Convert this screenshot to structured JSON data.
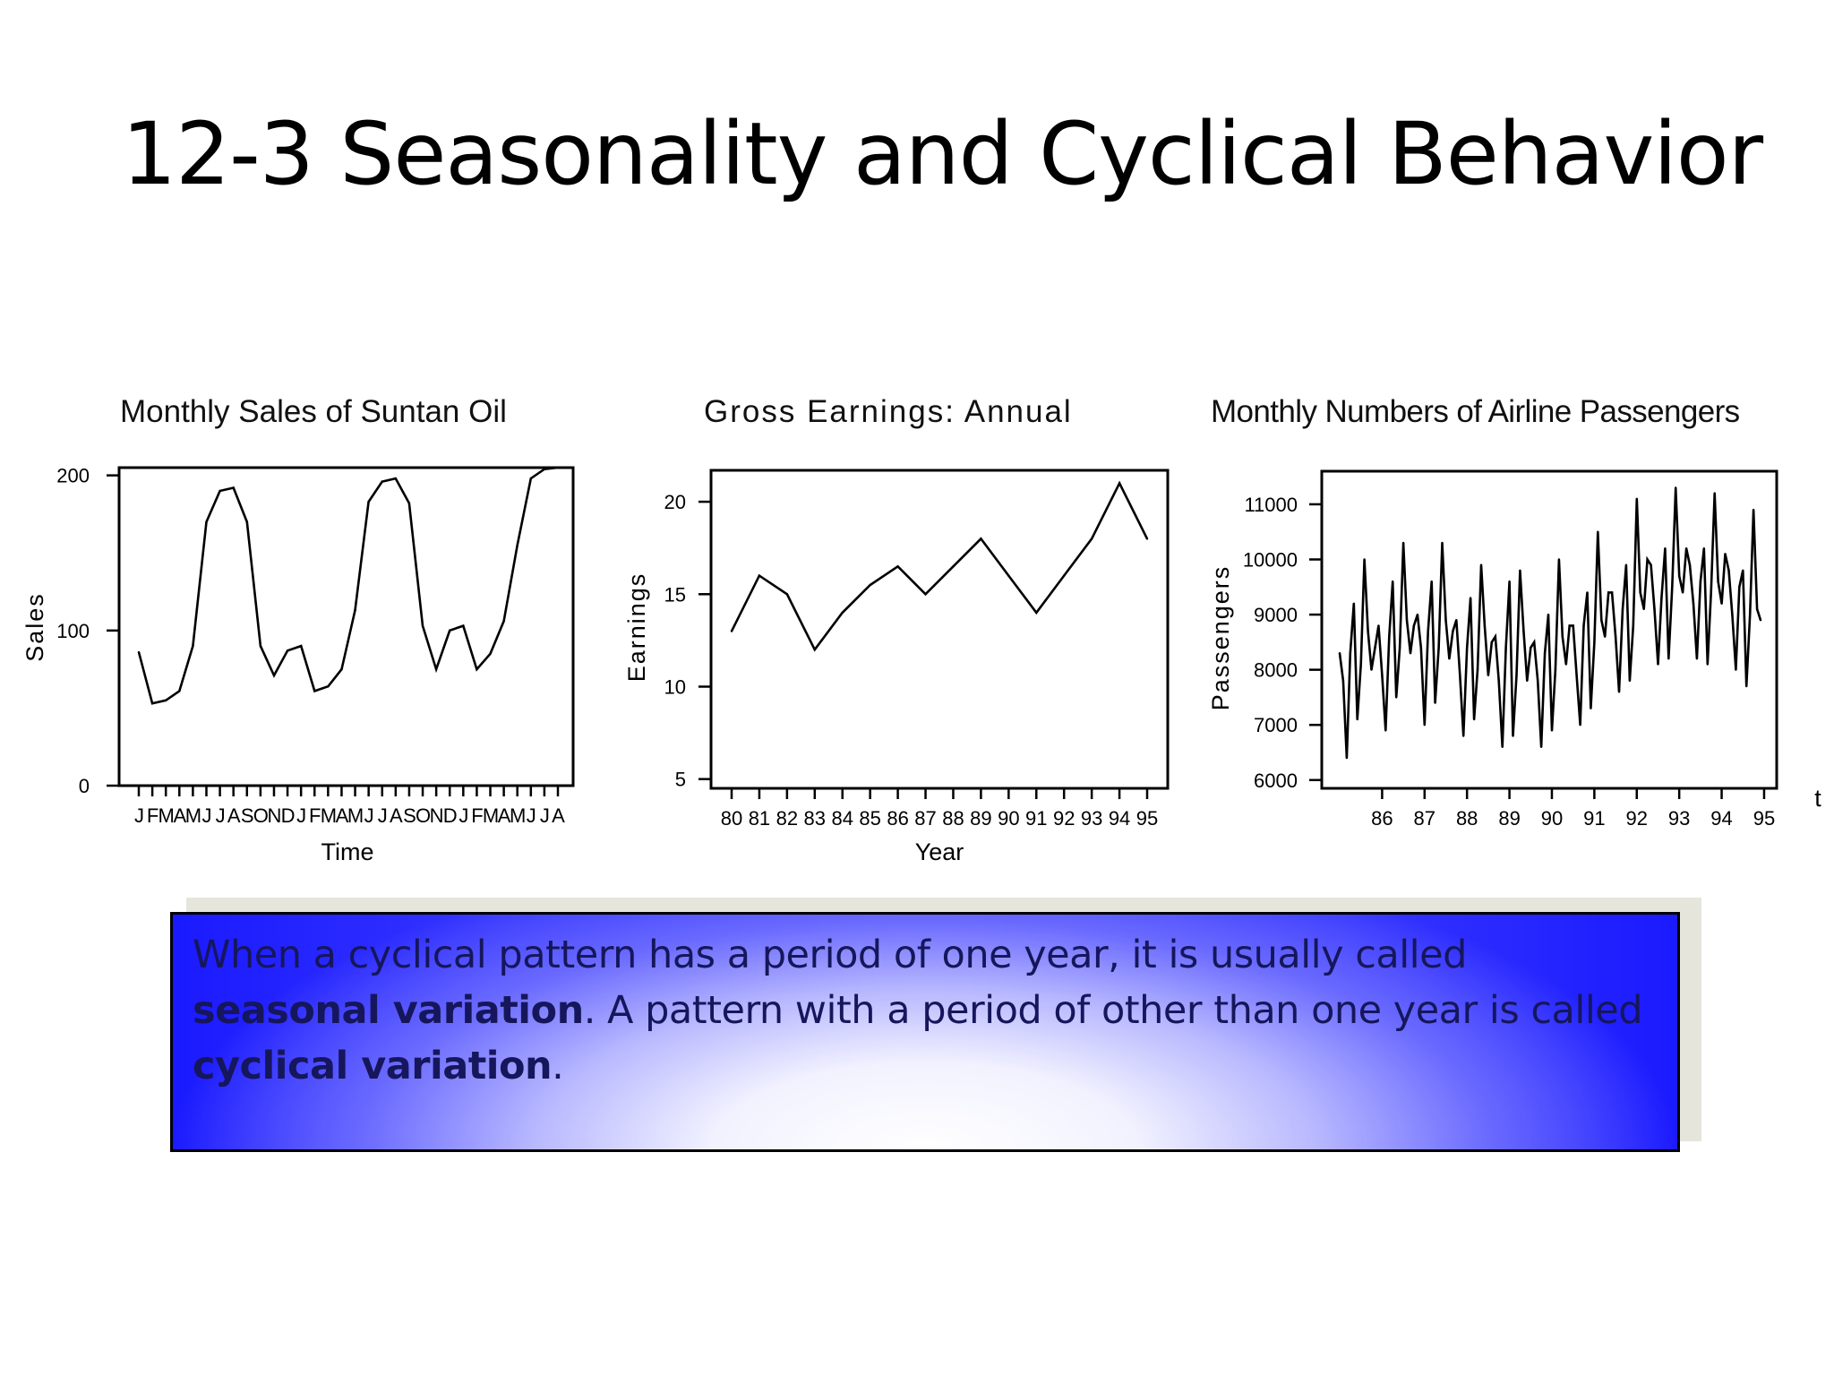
{
  "slide": {
    "title": "12-3  Seasonality and Cyclical Behavior"
  },
  "callout": {
    "part1": "When a cyclical pattern has a period of one year, it is usually called ",
    "bold1": "seasonal variation",
    "part2": ".  A pattern with a period of other than one year is called ",
    "bold2": "cyclical variation",
    "part3": "."
  },
  "chart_data": [
    {
      "type": "line",
      "title": "Monthly Sales of Suntan Oil",
      "xlabel": "Time",
      "ylabel": "Sales",
      "x_ticks": [
        "J",
        "F",
        "M",
        "A",
        "M",
        "J",
        "J",
        "A",
        "S",
        "O",
        "N",
        "D",
        "J",
        "F",
        "M",
        "A",
        "M",
        "J",
        "J",
        "A",
        "S",
        "O",
        "N",
        "D",
        "J",
        "F",
        "M",
        "A",
        "M",
        "J",
        "J",
        "A"
      ],
      "y_ticks": [
        0,
        100,
        200
      ],
      "ylim": [
        0,
        205
      ],
      "values": [
        86,
        53,
        55,
        61,
        90,
        170,
        190,
        192,
        170,
        90,
        71,
        87,
        90,
        61,
        64,
        75,
        113,
        183,
        196,
        198,
        182,
        103,
        75,
        100,
        103,
        75,
        85,
        106,
        155,
        198,
        204,
        205
      ],
      "grid": false,
      "legend": "none"
    },
    {
      "type": "line",
      "title": "Gross Earnings: Annual",
      "xlabel": "Year",
      "ylabel": "Earnings",
      "x": [
        "80",
        "81",
        "82",
        "83",
        "84",
        "85",
        "86",
        "87",
        "88",
        "89",
        "90",
        "91",
        "92",
        "93",
        "94",
        "95"
      ],
      "y_ticks": [
        5,
        10,
        15,
        20
      ],
      "ylim": [
        4.5,
        21.7
      ],
      "values": [
        13,
        16,
        15,
        12,
        14,
        15.5,
        16.5,
        15,
        16.5,
        18,
        16,
        14,
        16,
        18,
        21,
        18
      ],
      "grid": false,
      "legend": "none"
    },
    {
      "type": "line",
      "title": "Monthly Numbers of Airline Passengers",
      "xlabel": "t",
      "ylabel": "Passengers",
      "x_ticks": [
        "86",
        "87",
        "88",
        "89",
        "90",
        "91",
        "92",
        "93",
        "94",
        "95"
      ],
      "y_ticks": [
        6000,
        7000,
        8000,
        9000,
        10000,
        11000
      ],
      "ylim": [
        5850,
        11600
      ],
      "values": [
        8300,
        7800,
        6400,
        8300,
        9200,
        7100,
        8100,
        10000,
        8700,
        8000,
        8400,
        8800,
        7900,
        6900,
        8600,
        9600,
        7500,
        8400,
        10300,
        8900,
        8300,
        8800,
        9000,
        8400,
        7000,
        8700,
        9600,
        7400,
        8400,
        10300,
        8900,
        8200,
        8700,
        8900,
        7900,
        6800,
        8400,
        9300,
        7100,
        8000,
        9900,
        8800,
        7900,
        8500,
        8600,
        7800,
        6600,
        8400,
        9600,
        6800,
        7900,
        9800,
        8700,
        7800,
        8400,
        8500,
        7800,
        6600,
        8300,
        9000,
        6900,
        8000,
        10000,
        8600,
        8100,
        8800,
        8800,
        7900,
        7000,
        8800,
        9400,
        7300,
        8500,
        10500,
        8900,
        8600,
        9400,
        9400,
        8600,
        7600,
        9100,
        9900,
        7800,
        8800,
        11100,
        9400,
        9100,
        10000,
        9900,
        9100,
        8100,
        9300,
        10200,
        8200,
        9500,
        11300,
        9700,
        9400,
        10200,
        9900,
        9200,
        8200,
        9600,
        10200,
        8100,
        9400,
        11200,
        9600,
        9200,
        10100,
        9800,
        9000,
        8000,
        9500,
        9800,
        7700,
        9000,
        10900,
        9100,
        8900
      ],
      "grid": false,
      "legend": "none"
    }
  ]
}
